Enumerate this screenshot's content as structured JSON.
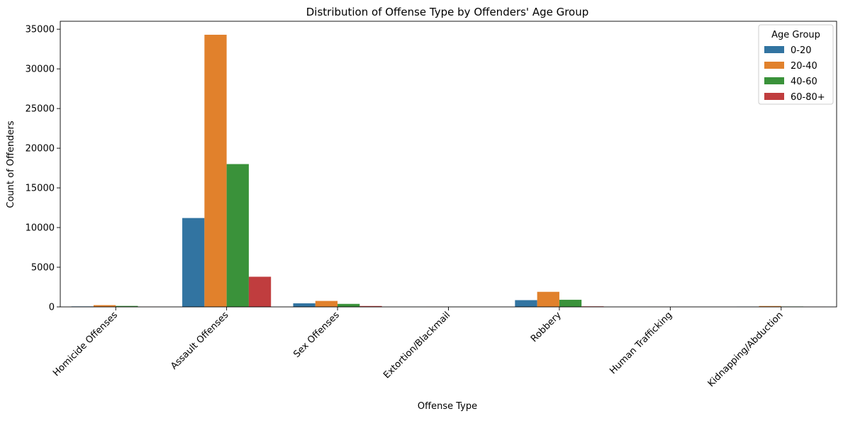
{
  "chart_data": {
    "type": "bar",
    "title": "Distribution of Offense Type by Offenders' Age Group",
    "xlabel": "Offense Type",
    "ylabel": "Count of Offenders",
    "categories": [
      "Homicide Offenses",
      "Assault Offenses",
      "Sex Offenses",
      "Extortion/Blackmail",
      "Robbery",
      "Human Trafficking",
      "Kidnapping/Abduction"
    ],
    "series": [
      {
        "name": "0-20",
        "color": "#3274a1",
        "values": [
          60,
          11200,
          450,
          5,
          850,
          2,
          30
        ]
      },
      {
        "name": "20-40",
        "color": "#e1812c",
        "values": [
          220,
          34300,
          750,
          15,
          1900,
          8,
          110
        ]
      },
      {
        "name": "40-60",
        "color": "#3a923a",
        "values": [
          120,
          18000,
          380,
          8,
          900,
          4,
          50
        ]
      },
      {
        "name": "60-80+",
        "color": "#c03d3e",
        "values": [
          20,
          3800,
          110,
          2,
          70,
          1,
          10
        ]
      }
    ],
    "ylim": [
      0,
      36000
    ],
    "yticks": [
      0,
      5000,
      10000,
      15000,
      20000,
      25000,
      30000,
      35000
    ],
    "legend": {
      "title": "Age Group",
      "position": "top-right"
    },
    "grid": false
  }
}
